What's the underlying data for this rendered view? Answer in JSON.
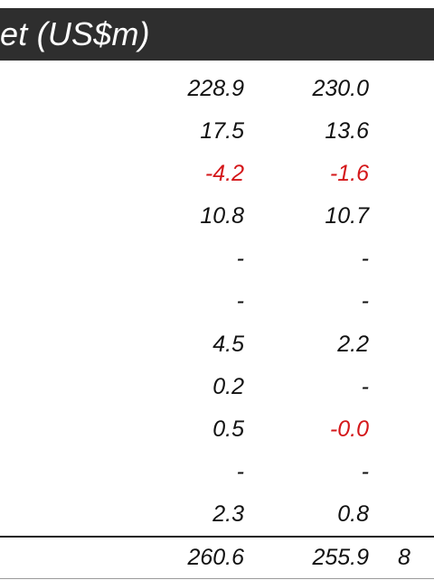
{
  "header": {
    "title": "et (US$m)"
  },
  "rows": [
    {
      "c1": "228.9",
      "c2": "230.0"
    },
    {
      "c1": "17.5",
      "c2": "13.6"
    },
    {
      "c1": "-4.2",
      "c2": "-1.6"
    },
    {
      "c1": "10.8",
      "c2": "10.7"
    },
    {
      "c1": "-",
      "c2": "-"
    },
    {
      "c1": "-",
      "c2": "-"
    },
    {
      "c1": "4.5",
      "c2": "2.2"
    },
    {
      "c1": "0.2",
      "c2": "-"
    },
    {
      "c1": "0.5",
      "c2": "-0.0"
    },
    {
      "c1": "-",
      "c2": "-"
    },
    {
      "c1": "2.3",
      "c2": "0.8"
    }
  ],
  "total": {
    "c1": "260.6",
    "c2": "255.9",
    "c3": "8"
  },
  "colors": {
    "header_bg": "#2e2e2e",
    "negative": "#d4171a",
    "text": "#111111"
  }
}
